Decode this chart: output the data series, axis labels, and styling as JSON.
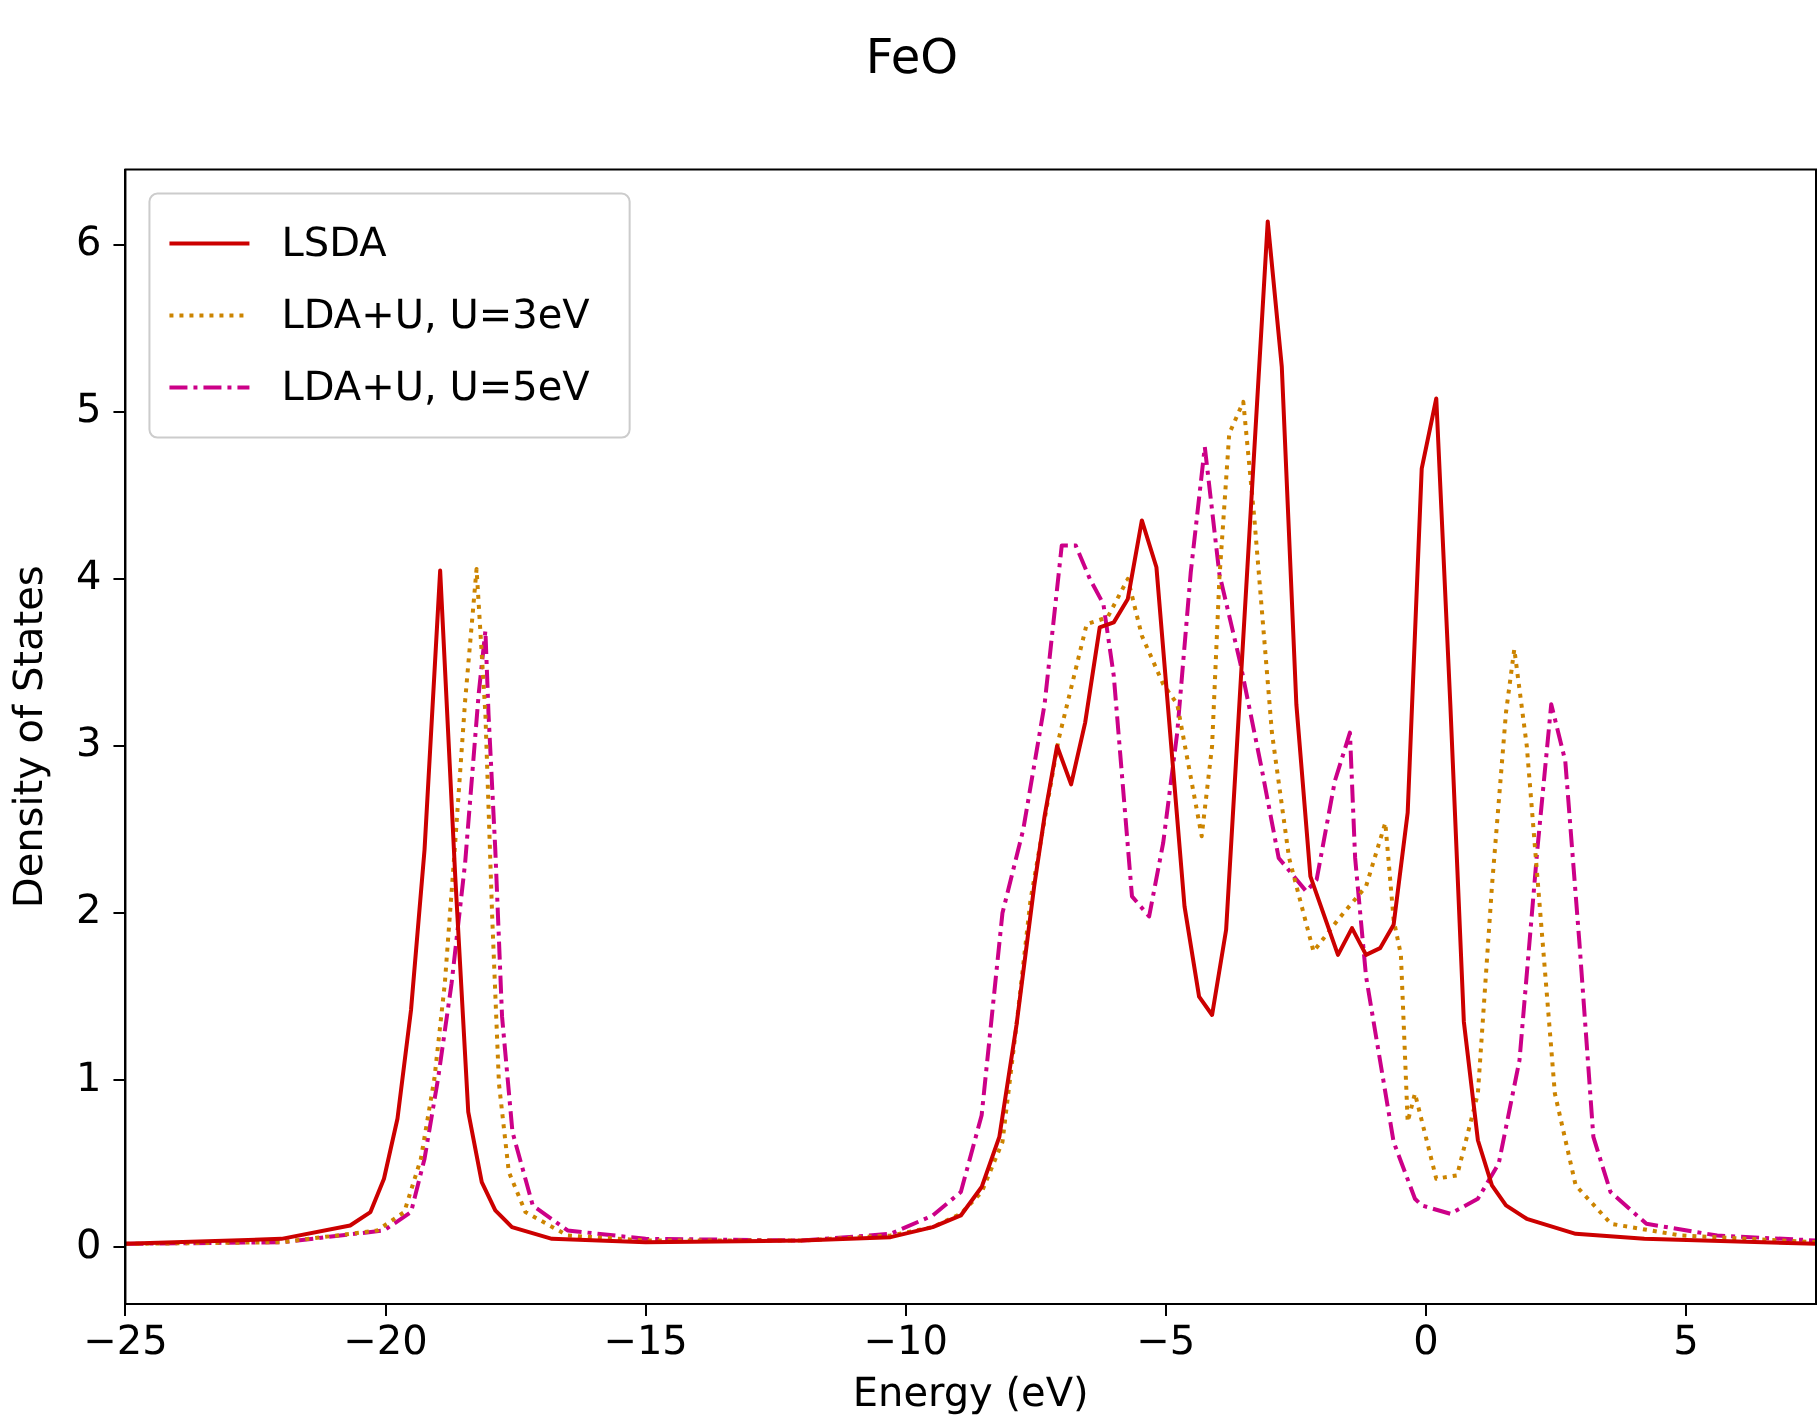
{
  "chart_data": {
    "type": "line",
    "title": "FeO",
    "xlabel": "Energy (eV)",
    "ylabel": "Density of States",
    "xlim": [
      -25,
      7.5
    ],
    "xticks": [
      -25,
      -20,
      -15,
      -10,
      -5,
      0,
      5
    ],
    "ylim": [
      -0.34,
      6.45
    ],
    "yticks": [
      0,
      1,
      2,
      3,
      4,
      5,
      6
    ],
    "grid": false,
    "legend": "top left",
    "marker": "none",
    "series": [
      {
        "name": "LSDA",
        "color": "#cc0000",
        "line_style": "solid",
        "x": [
          -25,
          -22,
          -20.68,
          -20.29,
          -20.03,
          -19.77,
          -19.51,
          -19.25,
          -18.95,
          -18.66,
          -18.41,
          -18.15,
          -17.89,
          -17.57,
          -16.8,
          -15,
          -12,
          -10.29,
          -9.48,
          -8.94,
          -8.54,
          -8.2,
          -7.87,
          -7.53,
          -7.33,
          -7.09,
          -6.82,
          -6.55,
          -6.27,
          -6.0,
          -5.73,
          -5.46,
          -5.18,
          -4.64,
          -4.36,
          -4.11,
          -3.84,
          -3.04,
          -2.77,
          -2.49,
          -2.22,
          -1.69,
          -1.42,
          -1.15,
          -0.88,
          -0.62,
          -0.35,
          -0.08,
          0.2,
          0.47,
          0.73,
          1.0,
          1.27,
          1.54,
          1.94,
          2.88,
          4.2,
          7.5
        ],
        "values": [
          0.02,
          0.05,
          0.13,
          0.21,
          0.41,
          0.77,
          1.42,
          2.38,
          4.05,
          2.22,
          0.81,
          0.39,
          0.22,
          0.12,
          0.05,
          0.03,
          0.04,
          0.06,
          0.12,
          0.19,
          0.36,
          0.66,
          1.33,
          2.16,
          2.58,
          3.0,
          2.77,
          3.14,
          3.71,
          3.74,
          3.88,
          4.35,
          4.07,
          2.04,
          1.5,
          1.39,
          1.9,
          6.14,
          5.27,
          3.25,
          2.22,
          1.75,
          1.91,
          1.75,
          1.79,
          1.93,
          2.6,
          4.66,
          5.08,
          3.25,
          1.35,
          0.64,
          0.37,
          0.25,
          0.17,
          0.08,
          0.05,
          0.02
        ]
      },
      {
        "name": "LDA+U, U=3eV",
        "color": "#cc8400",
        "line_style": "dotted",
        "x": [
          -25,
          -22,
          -20.16,
          -19.64,
          -19.32,
          -19.06,
          -18.86,
          -18.67,
          -18.47,
          -18.25,
          -18.08,
          -17.95,
          -17.82,
          -17.63,
          -17.31,
          -16.5,
          -15,
          -12,
          -10.29,
          -9.48,
          -8.94,
          -8.54,
          -8.14,
          -7.87,
          -7.6,
          -7.06,
          -6.52,
          -6.12,
          -5.73,
          -5.46,
          -5.05,
          -4.78,
          -4.31,
          -4.11,
          -3.97,
          -3.78,
          -3.51,
          -3.3,
          -2.96,
          -2.63,
          -2.16,
          -1.69,
          -1.15,
          -0.78,
          -0.62,
          -0.48,
          -0.35,
          -0.21,
          0.2,
          0.6,
          1.0,
          1.27,
          1.54,
          1.7,
          1.94,
          2.21,
          2.48,
          2.88,
          3.56,
          4.9,
          7.5
        ],
        "values": [
          0.02,
          0.03,
          0.1,
          0.21,
          0.53,
          1.01,
          1.58,
          2.38,
          3.27,
          4.06,
          3.19,
          1.98,
          0.98,
          0.45,
          0.21,
          0.07,
          0.04,
          0.04,
          0.07,
          0.12,
          0.2,
          0.33,
          0.63,
          1.33,
          2.08,
          3.04,
          3.73,
          3.77,
          4.0,
          3.66,
          3.37,
          3.25,
          2.46,
          3.0,
          4.0,
          4.87,
          5.06,
          4.37,
          3.08,
          2.33,
          1.77,
          1.96,
          2.16,
          2.54,
          1.96,
          1.75,
          0.75,
          0.92,
          0.41,
          0.43,
          0.92,
          2.16,
          3.2,
          3.58,
          3.0,
          1.96,
          0.92,
          0.37,
          0.14,
          0.07,
          0.03
        ]
      },
      {
        "name": "LDA+U, U=5eV",
        "color": "#cc0088",
        "line_style": "dashdot",
        "x": [
          -25,
          -21.98,
          -20.03,
          -19.51,
          -19.25,
          -18.99,
          -18.73,
          -18.47,
          -18.21,
          -18.08,
          -18.02,
          -17.89,
          -17.76,
          -17.56,
          -17.17,
          -16.5,
          -15,
          -12,
          -10.29,
          -9.48,
          -8.94,
          -8.54,
          -8.14,
          -7.74,
          -7.33,
          -7.0,
          -6.73,
          -6.46,
          -6.2,
          -6.0,
          -5.65,
          -5.32,
          -5.05,
          -4.78,
          -4.52,
          -4.25,
          -3.97,
          -3.57,
          -3.16,
          -2.83,
          -2.3,
          -2.1,
          -1.75,
          -1.46,
          -1.36,
          -1.15,
          -0.62,
          -0.21,
          -0.08,
          0.47,
          1.0,
          1.4,
          1.8,
          2.14,
          2.41,
          2.68,
          2.95,
          3.22,
          3.55,
          4.24,
          5.6,
          7.5
        ],
        "values": [
          0.02,
          0.03,
          0.1,
          0.21,
          0.53,
          1.01,
          1.58,
          2.3,
          3.31,
          3.69,
          3.19,
          2.38,
          1.38,
          0.69,
          0.25,
          0.1,
          0.05,
          0.04,
          0.08,
          0.19,
          0.33,
          0.79,
          2.0,
          2.5,
          3.25,
          4.2,
          4.2,
          4.0,
          3.85,
          3.42,
          2.1,
          1.98,
          2.42,
          3.08,
          4.04,
          4.79,
          4.03,
          3.5,
          2.87,
          2.33,
          2.13,
          2.2,
          2.79,
          3.08,
          2.33,
          1.62,
          0.63,
          0.29,
          0.25,
          0.2,
          0.29,
          0.5,
          1.12,
          2.37,
          3.25,
          2.91,
          1.83,
          0.66,
          0.33,
          0.14,
          0.07,
          0.04
        ]
      }
    ]
  }
}
